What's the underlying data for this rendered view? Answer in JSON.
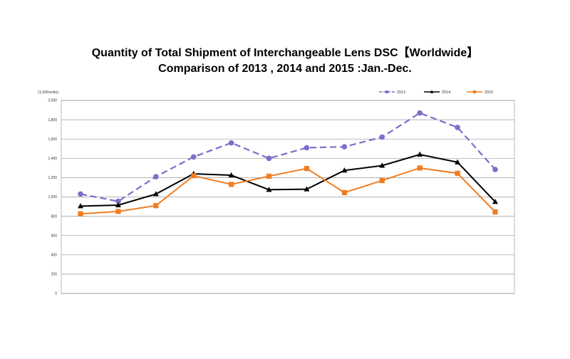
{
  "title_line1": "Quantity of Total Shipment of Interchangeable Lens DSC【Worldwide】",
  "title_line2": "Comparison of 2013 , 2014 and 2015 :Jan.-Dec.",
  "chart_data": {
    "type": "line",
    "title": "Quantity of Total Shipment of Interchangeable Lens DSC【Worldwide】 Comparison of 2013 , 2014 and 2015 :Jan.-Dec.",
    "unit_label": "(1,000units)",
    "ylim": [
      0,
      2000
    ],
    "yticks": [
      "0",
      "200",
      "400",
      "600",
      "800",
      "1,000",
      "1,200",
      "1,400",
      "1,600",
      "1,800",
      "2,000"
    ],
    "grid": true,
    "legend_position": "top-right",
    "series": [
      {
        "name": "2013",
        "color": "#7b6fc9",
        "dash": true,
        "marker": "circle",
        "values": [
          1030,
          955,
          1210,
          1415,
          1560,
          1400,
          1510,
          1520,
          1620,
          1870,
          1720,
          1285
        ]
      },
      {
        "name": "2014",
        "color": "#000000",
        "dash": false,
        "marker": "triangle",
        "values": [
          905,
          915,
          1030,
          1240,
          1225,
          1075,
          1080,
          1275,
          1325,
          1440,
          1360,
          950
        ]
      },
      {
        "name": "2015",
        "color": "#ef7d22",
        "dash": false,
        "marker": "square",
        "values": [
          825,
          850,
          910,
          1220,
          1130,
          1215,
          1295,
          1045,
          1170,
          1300,
          1245,
          845
        ]
      }
    ]
  }
}
